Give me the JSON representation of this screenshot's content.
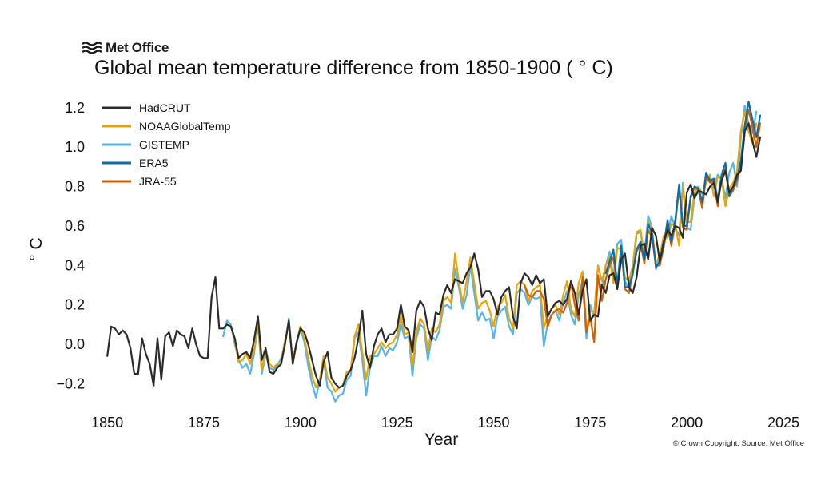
{
  "brand": {
    "name": "Met Office",
    "icon": "met-office-waves-icon"
  },
  "title": "Global mean temperature difference from 1850-1900 ( ° C)",
  "credit": "© Crown Copyright. Source: Met Office",
  "chart_data": {
    "type": "line",
    "xlabel": "Year",
    "ylabel": "° C",
    "xlim": [
      1845,
      2025
    ],
    "ylim": [
      -0.32,
      1.28
    ],
    "xticks": [
      1850,
      1875,
      1900,
      1925,
      1950,
      1975,
      2000,
      2025
    ],
    "xtick_labels": [
      "1850",
      "1875",
      "1900",
      "1925",
      "1950",
      "1975",
      "2000",
      "2025"
    ],
    "yticks": [
      -0.2,
      0.0,
      0.2,
      0.4,
      0.6,
      0.8,
      1.0,
      1.2
    ],
    "ytick_labels": [
      "−0.2",
      "0.0",
      "0.2",
      "0.4",
      "0.6",
      "0.8",
      "1.0",
      "1.2"
    ],
    "grid": false,
    "legend_position": "top-left",
    "series": [
      {
        "name": "HadCRUT",
        "color": "#2b2b2b",
        "start_year": 1850,
        "values": [
          -0.06,
          0.09,
          0.08,
          0.05,
          0.07,
          0.05,
          -0.02,
          -0.15,
          -0.15,
          0.03,
          -0.05,
          -0.1,
          -0.21,
          0.03,
          -0.18,
          0.04,
          0.06,
          -0.01,
          0.07,
          0.05,
          0.04,
          -0.02,
          0.08,
          0.0,
          -0.06,
          -0.07,
          -0.07,
          0.24,
          0.34,
          0.08,
          0.08,
          0.1,
          0.09,
          0.03,
          -0.07,
          -0.05,
          -0.04,
          -0.07,
          0.02,
          0.14,
          -0.08,
          -0.02,
          -0.14,
          -0.15,
          -0.12,
          -0.1,
          0.0,
          0.12,
          -0.1,
          0.01,
          0.08,
          0.06,
          0.0,
          -0.08,
          -0.16,
          -0.21,
          -0.09,
          -0.04,
          -0.17,
          -0.2,
          -0.22,
          -0.21,
          -0.16,
          -0.13,
          -0.07,
          0.03,
          0.17,
          -0.05,
          -0.12,
          -0.01,
          0.05,
          0.08,
          0.01,
          0.05,
          0.05,
          0.08,
          0.2,
          0.09,
          0.07,
          -0.04,
          0.17,
          0.22,
          0.19,
          0.08,
          0.02,
          0.16,
          0.15,
          0.25,
          0.3,
          0.26,
          0.33,
          0.32,
          0.31,
          0.36,
          0.39,
          0.46,
          0.38,
          0.24,
          0.27,
          0.27,
          0.23,
          0.15,
          0.24,
          0.27,
          0.29,
          0.14,
          0.08,
          0.31,
          0.36,
          0.34,
          0.3,
          0.35,
          0.31,
          0.33,
          0.14,
          0.18,
          0.21,
          0.22,
          0.2,
          0.23,
          0.32,
          0.26,
          0.15,
          0.27,
          0.33,
          0.12,
          0.15,
          0.14,
          0.3,
          0.26,
          0.35,
          0.36,
          0.28,
          0.43,
          0.46,
          0.29,
          0.26,
          0.34,
          0.5,
          0.51,
          0.43,
          0.59,
          0.55,
          0.42,
          0.52,
          0.58,
          0.55,
          0.6,
          0.59,
          0.54,
          0.77,
          0.81,
          0.74,
          0.78,
          0.77,
          0.76,
          0.8,
          0.82,
          0.72,
          0.83,
          0.88,
          0.77,
          0.8,
          0.86,
          0.88,
          1.08,
          1.12,
          1.03,
          0.95,
          1.05
        ]
      },
      {
        "name": "NOAAGlobalTemp",
        "color": "#e5a50a",
        "start_year": 1880,
        "values": [
          0.08,
          0.1,
          0.09,
          0.02,
          -0.09,
          -0.08,
          -0.05,
          -0.1,
          -0.03,
          0.12,
          -0.13,
          -0.03,
          -0.1,
          -0.12,
          -0.1,
          -0.09,
          0.02,
          0.1,
          -0.08,
          0.01,
          0.09,
          0.03,
          -0.07,
          -0.16,
          -0.22,
          -0.18,
          -0.06,
          -0.17,
          -0.2,
          -0.24,
          -0.22,
          -0.21,
          -0.14,
          -0.13,
          0.04,
          0.1,
          -0.04,
          -0.18,
          -0.06,
          -0.05,
          -0.02,
          0.01,
          -0.02,
          0.0,
          0.01,
          0.05,
          0.14,
          0.05,
          0.06,
          -0.11,
          0.06,
          0.13,
          0.1,
          -0.03,
          0.08,
          0.06,
          0.1,
          0.22,
          0.24,
          0.21,
          0.46,
          0.32,
          0.21,
          0.32,
          0.44,
          0.31,
          0.18,
          0.21,
          0.22,
          0.17,
          0.09,
          0.19,
          0.21,
          0.25,
          0.13,
          0.08,
          0.3,
          0.32,
          0.3,
          0.22,
          0.27,
          0.29,
          0.3,
          0.08,
          0.15,
          0.18,
          0.2,
          0.15,
          0.25,
          0.32,
          0.18,
          0.14,
          0.31,
          0.37,
          0.08,
          0.17,
          0.16,
          0.4,
          0.32,
          0.4,
          0.44,
          0.31,
          0.49,
          0.48,
          0.34,
          0.32,
          0.4,
          0.57,
          0.58,
          0.45,
          0.62,
          0.58,
          0.41,
          0.45,
          0.55,
          0.55,
          0.61,
          0.6,
          0.5,
          0.8,
          0.62,
          0.62,
          0.77,
          0.8,
          0.76,
          0.82,
          0.86,
          0.75,
          0.85,
          0.84,
          0.7,
          0.79,
          0.82,
          0.88,
          1.08,
          1.18,
          1.08,
          1.02,
          1.12
        ]
      },
      {
        "name": "GISTEMP",
        "color": "#56b4e9",
        "start_year": 1880,
        "values": [
          0.04,
          0.12,
          0.1,
          0.0,
          -0.08,
          -0.12,
          -0.1,
          -0.15,
          -0.05,
          0.1,
          -0.15,
          -0.05,
          -0.12,
          -0.13,
          -0.11,
          -0.07,
          0.0,
          0.13,
          -0.09,
          0.0,
          0.08,
          0.01,
          -0.11,
          -0.2,
          -0.27,
          -0.18,
          -0.08,
          -0.22,
          -0.24,
          -0.29,
          -0.26,
          -0.25,
          -0.18,
          -0.16,
          0.03,
          0.06,
          -0.08,
          -0.26,
          -0.12,
          -0.06,
          -0.06,
          -0.01,
          -0.06,
          -0.02,
          -0.03,
          0.01,
          0.1,
          0.03,
          0.04,
          -0.16,
          0.03,
          0.1,
          0.08,
          -0.08,
          0.04,
          0.02,
          0.07,
          0.19,
          0.2,
          0.18,
          0.38,
          0.29,
          0.18,
          0.25,
          0.4,
          0.26,
          0.12,
          0.16,
          0.12,
          0.13,
          0.03,
          0.14,
          0.17,
          0.19,
          0.09,
          0.05,
          0.26,
          0.28,
          0.26,
          0.2,
          0.24,
          0.23,
          0.24,
          -0.01,
          0.11,
          0.15,
          0.17,
          0.12,
          0.21,
          0.27,
          0.15,
          0.1,
          0.25,
          0.32,
          0.03,
          0.2,
          0.14,
          0.34,
          0.28,
          0.4,
          0.47,
          0.34,
          0.51,
          0.53,
          0.32,
          0.28,
          0.35,
          0.56,
          0.57,
          0.45,
          0.65,
          0.59,
          0.38,
          0.44,
          0.52,
          0.55,
          0.65,
          0.59,
          0.55,
          0.82,
          0.59,
          0.58,
          0.75,
          0.8,
          0.76,
          0.82,
          0.85,
          0.79,
          0.86,
          0.84,
          0.74,
          0.87,
          0.92,
          0.8,
          1.05,
          1.21,
          1.12,
          1.07,
          1.18
        ]
      },
      {
        "name": "ERA5",
        "color": "#0a6fa8",
        "start_year": 1979,
        "values": [
          0.36,
          0.42,
          0.48,
          0.3,
          0.5,
          0.29,
          0.29,
          0.36,
          0.48,
          0.52,
          0.43,
          0.61,
          0.56,
          0.39,
          0.42,
          0.5,
          0.63,
          0.52,
          0.63,
          0.81,
          0.6,
          0.6,
          0.75,
          0.8,
          0.79,
          0.72,
          0.87,
          0.83,
          0.84,
          0.73,
          0.86,
          0.92,
          0.75,
          0.8,
          0.84,
          0.93,
          1.11,
          1.23,
          1.14,
          1.05,
          1.16
        ]
      },
      {
        "name": "JRA-55",
        "color": "#d55e00",
        "start_year": 1958,
        "values": [
          0.3,
          0.25,
          0.24,
          0.27,
          0.27,
          0.23,
          0.09,
          0.15,
          0.17,
          0.18,
          0.16,
          0.21,
          0.31,
          0.2,
          0.12,
          0.34,
          0.06,
          0.14,
          0.01,
          0.35,
          0.22,
          0.33,
          0.4,
          0.44,
          0.29,
          0.49,
          0.28,
          0.26,
          0.36,
          0.47,
          0.51,
          0.41,
          0.58,
          0.54,
          0.4,
          0.4,
          0.49,
          0.6,
          0.5,
          0.61,
          0.79,
          0.59,
          0.58,
          0.74,
          0.8,
          0.78,
          0.69,
          0.85,
          0.82,
          0.83,
          0.7,
          0.85,
          0.89,
          0.75,
          0.78,
          0.83,
          0.9,
          1.08,
          1.19,
          1.1,
          1.0,
          1.12
        ]
      }
    ]
  }
}
